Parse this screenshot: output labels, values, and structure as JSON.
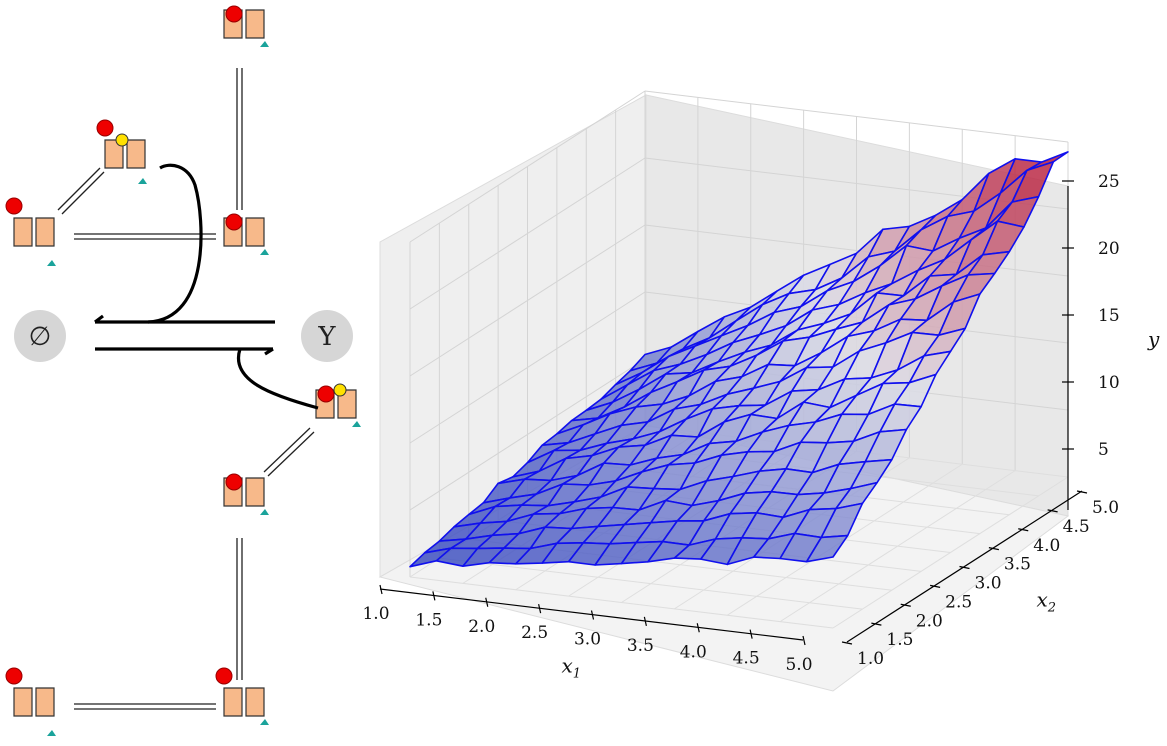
{
  "left_diagram": {
    "source_node_label": "∅",
    "product_node_label": "Y"
  },
  "chart_data": {
    "type": "surface",
    "title": "",
    "xlabel": "x",
    "xlabel_subscript": "1",
    "ylabel": "x",
    "ylabel_subscript": "2",
    "zlabel": "y",
    "x_ticks": [
      "1.0",
      "1.5",
      "2.0",
      "2.5",
      "3.0",
      "3.5",
      "4.0",
      "4.5",
      "5.0"
    ],
    "y_ticks": [
      "1.0",
      "1.5",
      "2.0",
      "2.5",
      "3.0",
      "3.5",
      "4.0",
      "4.5",
      "5.0"
    ],
    "z_ticks": [
      "5",
      "10",
      "15",
      "20",
      "25"
    ],
    "xlim": [
      1.0,
      5.0
    ],
    "ylim": [
      1.0,
      5.0
    ],
    "zlim": [
      0,
      25
    ],
    "surface_model": "y ≈ x1 · x2 (noisy)",
    "corner_values": {
      "x1=1,x2=1": 1,
      "x1=5,x2=1": 5,
      "x1=1,x2=5": 5,
      "x1=5,x2=5": 25
    },
    "grid_resolution": 16,
    "wireframe_color": "#1010ee",
    "colormap": [
      "#3b4cc0",
      "#b40426"
    ],
    "grid": true
  }
}
